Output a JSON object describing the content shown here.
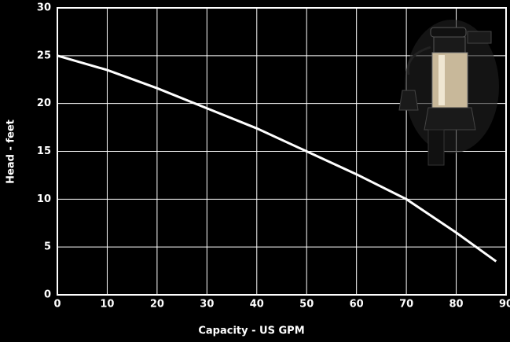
{
  "chart_data": {
    "type": "line",
    "x_label": "Capacity - US GPM",
    "y_label": "Head - feet",
    "x": [
      0,
      10,
      20,
      30,
      40,
      50,
      60,
      70,
      80,
      88
    ],
    "series": [
      {
        "color": "#ffffff",
        "values": [
          25,
          23.5,
          21.6,
          19.5,
          17.4,
          15,
          12.6,
          10,
          6.5,
          3.5
        ]
      }
    ],
    "xlim": [
      0,
      90
    ],
    "xticks": [
      0,
      10,
      20,
      30,
      40,
      50,
      60,
      70,
      80,
      90
    ],
    "ylim": [
      0,
      30
    ],
    "yticks": [
      0,
      5,
      10,
      15,
      20,
      25,
      30
    ],
    "grid": true
  }
}
